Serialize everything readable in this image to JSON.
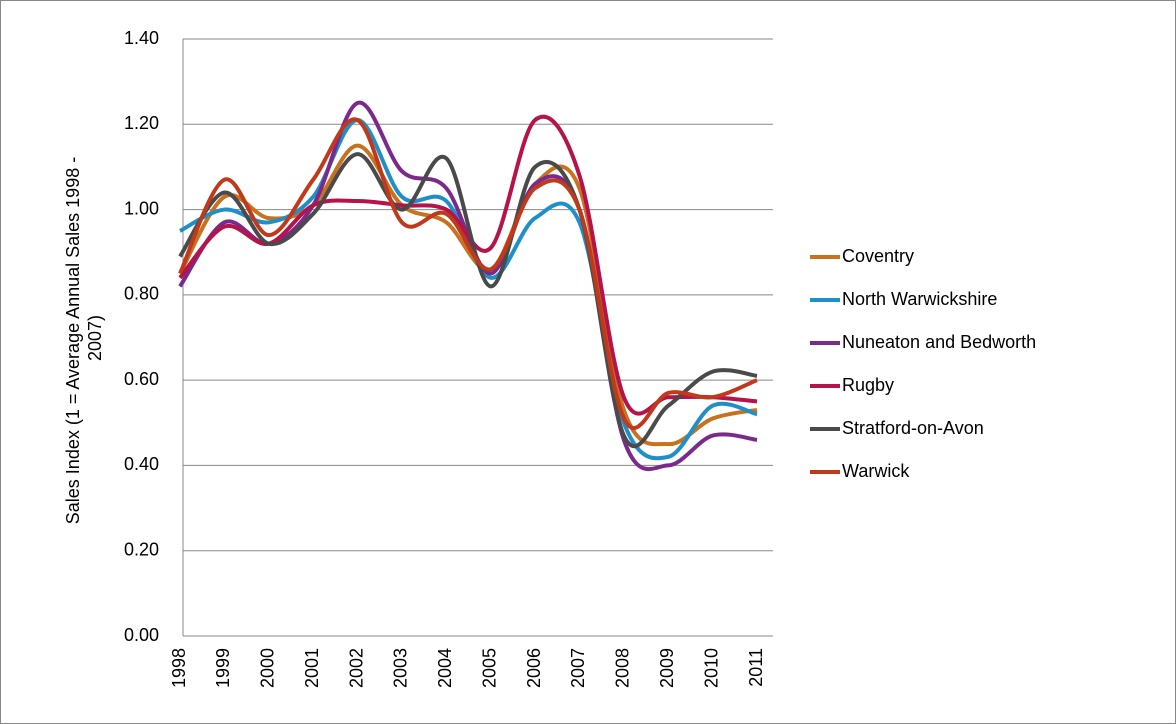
{
  "chart_data": {
    "type": "line",
    "y_label": [
      "Sales Index (1 = Average Annual  Sales 1998 -",
      "2007)"
    ],
    "categories": [
      "1998",
      "1999",
      "2000",
      "2001",
      "2002",
      "2003",
      "2004",
      "2005",
      "2006",
      "2007",
      "2008",
      "2009",
      "2010",
      "2011"
    ],
    "series": [
      {
        "name": "Coventry",
        "color": "#c8711f",
        "values": [
          0.85,
          1.03,
          0.98,
          1.01,
          1.15,
          1.01,
          0.97,
          0.86,
          1.06,
          1.05,
          0.53,
          0.45,
          0.51,
          0.53
        ]
      },
      {
        "name": "North Warwickshire",
        "color": "#1f8fc7",
        "values": [
          0.95,
          1.0,
          0.97,
          1.03,
          1.21,
          1.03,
          1.02,
          0.84,
          0.98,
          0.97,
          0.5,
          0.42,
          0.54,
          0.52
        ]
      },
      {
        "name": "Nuneaton and Bedworth",
        "color": "#7b2a8c",
        "values": [
          0.82,
          0.97,
          0.92,
          1.01,
          1.25,
          1.09,
          1.05,
          0.85,
          1.06,
          1.0,
          0.46,
          0.4,
          0.47,
          0.46
        ]
      },
      {
        "name": "Rugby",
        "color": "#b5134a",
        "values": [
          0.84,
          0.96,
          0.92,
          1.01,
          1.02,
          1.01,
          1.0,
          0.91,
          1.21,
          1.08,
          0.56,
          0.56,
          0.56,
          0.55
        ]
      },
      {
        "name": "Stratford-on-Avon",
        "color": "#4a4a4a",
        "values": [
          0.89,
          1.04,
          0.92,
          0.99,
          1.13,
          1.0,
          1.12,
          0.82,
          1.1,
          1.0,
          0.47,
          0.54,
          0.62,
          0.61
        ]
      },
      {
        "name": "Warwick",
        "color": "#c0391b",
        "values": [
          0.85,
          1.07,
          0.94,
          1.07,
          1.21,
          0.97,
          0.99,
          0.86,
          1.05,
          1.0,
          0.51,
          0.57,
          0.56,
          0.6
        ]
      }
    ],
    "ylim": [
      0,
      1.4
    ],
    "yticks": [
      {
        "value": 0,
        "label": "0.00"
      },
      {
        "value": 0.2,
        "label": "0.20"
      },
      {
        "value": 0.4,
        "label": "0.40"
      },
      {
        "value": 0.6,
        "label": "0.60"
      },
      {
        "value": 0.8,
        "label": "0.80"
      },
      {
        "value": 1,
        "label": "1.00"
      },
      {
        "value": 1.2,
        "label": "1.20"
      },
      {
        "value": 1.4,
        "label": "1.40"
      }
    ],
    "grid": true,
    "legend": "right"
  }
}
